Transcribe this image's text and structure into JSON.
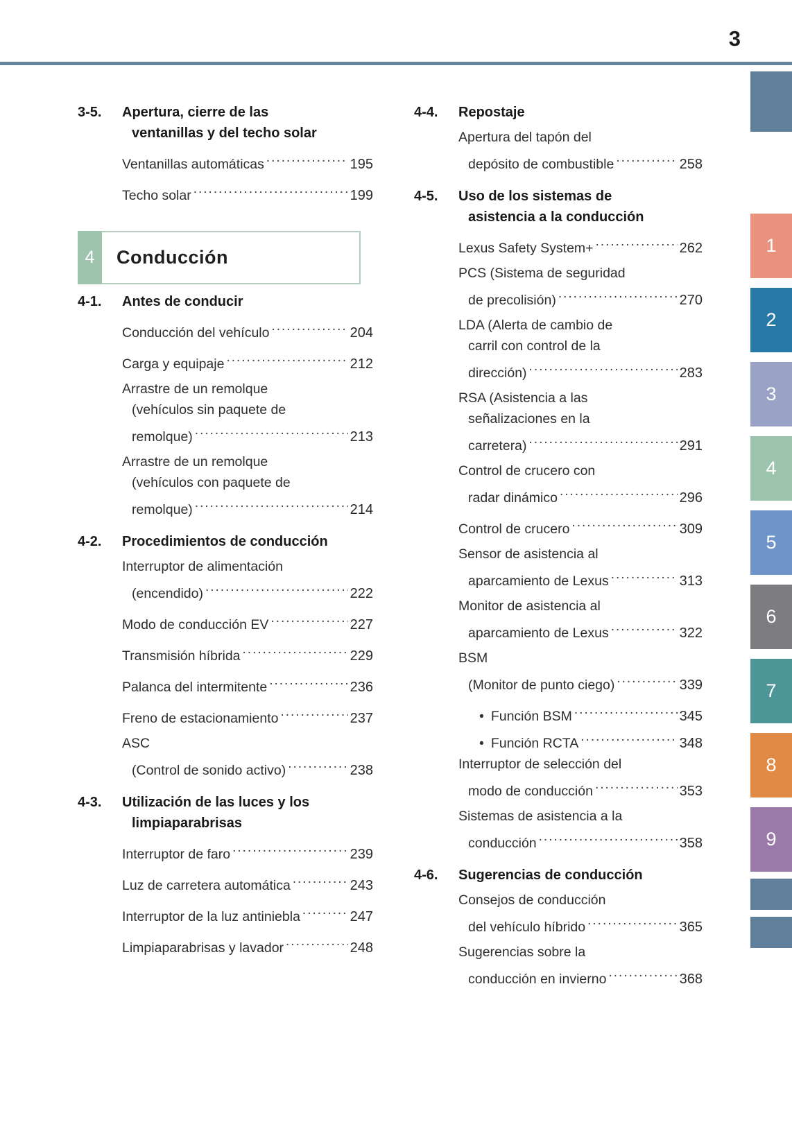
{
  "page_header": {
    "page_number": "3"
  },
  "chapter_banner": {
    "number": "4",
    "title": "Conducción"
  },
  "glyphs": {
    "bullet": "•"
  },
  "colors": {
    "rule": "#66869f",
    "banner_border": "#b7cdc0",
    "banner_badge": "#9fc4ae",
    "text": "#2e2e2e"
  },
  "toc": {
    "left": [
      {
        "type": "section",
        "num": "3-5.",
        "title_lines": [
          "Apertura, cierre de las",
          "ventanillas y del techo solar"
        ],
        "items": [
          {
            "lines": [
              "Ventanillas automáticas"
            ],
            "page": "195"
          },
          {
            "lines": [
              "Techo solar"
            ],
            "page": "199"
          }
        ]
      },
      {
        "type": "chapter"
      },
      {
        "type": "section",
        "num": "4-1.",
        "title_lines": [
          "Antes de conducir"
        ],
        "items": [
          {
            "lines": [
              "Conducción del vehículo"
            ],
            "page": "204"
          },
          {
            "lines": [
              "Carga y equipaje"
            ],
            "page": "212"
          },
          {
            "lines": [
              "Arrastre de un remolque",
              "(vehículos sin paquete de",
              "remolque)"
            ],
            "page": "213"
          },
          {
            "lines": [
              "Arrastre de un remolque",
              "(vehículos con paquete de",
              "remolque)"
            ],
            "page": "214"
          }
        ]
      },
      {
        "type": "section",
        "num": "4-2.",
        "title_lines": [
          "Procedimientos de conducción"
        ],
        "items": [
          {
            "lines": [
              "Interruptor de alimentación",
              "(encendido)"
            ],
            "page": "222"
          },
          {
            "lines": [
              "Modo de conducción EV"
            ],
            "page": "227"
          },
          {
            "lines": [
              "Transmisión híbrida"
            ],
            "page": "229"
          },
          {
            "lines": [
              "Palanca del intermitente"
            ],
            "page": "236"
          },
          {
            "lines": [
              "Freno de estacionamiento"
            ],
            "page": "237"
          },
          {
            "lines": [
              "ASC",
              "(Control de sonido activo)"
            ],
            "page": "238"
          }
        ]
      },
      {
        "type": "section",
        "num": "4-3.",
        "title_lines": [
          "Utilización de las luces y los",
          "limpiaparabrisas"
        ],
        "items": [
          {
            "lines": [
              "Interruptor de faro"
            ],
            "page": "239"
          },
          {
            "lines": [
              "Luz de carretera automática"
            ],
            "page": "243"
          },
          {
            "lines": [
              "Interruptor de la luz antiniebla"
            ],
            "page": "247"
          },
          {
            "lines": [
              "Limpiaparabrisas y lavador"
            ],
            "page": "248"
          }
        ]
      }
    ],
    "right": [
      {
        "type": "section",
        "num": "4-4.",
        "title_lines": [
          "Repostaje"
        ],
        "items": [
          {
            "lines": [
              "Apertura del tapón del",
              "depósito de combustible"
            ],
            "page": "258"
          }
        ]
      },
      {
        "type": "section",
        "num": "4-5.",
        "title_lines": [
          "Uso de los sistemas de",
          "asistencia a la conducción"
        ],
        "items": [
          {
            "lines": [
              "Lexus Safety System+"
            ],
            "page": "262"
          },
          {
            "lines": [
              "PCS (Sistema de seguridad",
              "de precolisión)"
            ],
            "page": "270"
          },
          {
            "lines": [
              "LDA (Alerta de cambio de",
              "carril con control de la",
              "dirección)"
            ],
            "page": "283"
          },
          {
            "lines": [
              "RSA (Asistencia a las",
              "señalizaciones en la",
              "carretera)"
            ],
            "page": "291"
          },
          {
            "lines": [
              "Control de crucero con",
              "radar dinámico"
            ],
            "page": "296"
          },
          {
            "lines": [
              "Control de crucero"
            ],
            "page": "309"
          },
          {
            "lines": [
              "Sensor de asistencia al",
              "aparcamiento de Lexus"
            ],
            "page": "313"
          },
          {
            "lines": [
              "Monitor de asistencia al",
              "aparcamiento de Lexus"
            ],
            "page": "322"
          },
          {
            "lines": [
              "BSM",
              "(Monitor de punto ciego)"
            ],
            "page": "339"
          },
          {
            "bullet": true,
            "lines": [
              "Función BSM"
            ],
            "page": "345"
          },
          {
            "bullet": true,
            "lines": [
              "Función RCTA"
            ],
            "page": "348"
          },
          {
            "lines": [
              "Interruptor de selección del",
              "modo de conducción"
            ],
            "page": "353"
          },
          {
            "lines": [
              "Sistemas de asistencia a la",
              "conducción"
            ],
            "page": "358"
          }
        ]
      },
      {
        "type": "section",
        "num": "4-6.",
        "title_lines": [
          "Sugerencias de conducción"
        ],
        "items": [
          {
            "lines": [
              "Consejos de conducción",
              "del vehículo híbrido"
            ],
            "page": "365"
          },
          {
            "lines": [
              "Sugerencias sobre la",
              "conducción en invierno"
            ],
            "page": "368"
          }
        ]
      }
    ]
  },
  "side_tabs": [
    {
      "label": "",
      "color": "#5f7f9b",
      "kind": "top"
    },
    {
      "label": "1",
      "color": "#e9937f",
      "kind": "num"
    },
    {
      "label": "2",
      "color": "#2878a8",
      "kind": "num"
    },
    {
      "label": "3",
      "color": "#9aa2c6",
      "kind": "num"
    },
    {
      "label": "4",
      "color": "#9cc3ac",
      "kind": "num"
    },
    {
      "label": "5",
      "color": "#6e94c9",
      "kind": "num"
    },
    {
      "label": "6",
      "color": "#7d7c80",
      "kind": "num"
    },
    {
      "label": "7",
      "color": "#4e9598",
      "kind": "num"
    },
    {
      "label": "8",
      "color": "#e08a46",
      "kind": "num"
    },
    {
      "label": "9",
      "color": "#9b79a8",
      "kind": "num"
    },
    {
      "label": "",
      "color": "#5f7f9b",
      "kind": "small"
    },
    {
      "label": "",
      "color": "#5f7f9b",
      "kind": "small"
    }
  ]
}
